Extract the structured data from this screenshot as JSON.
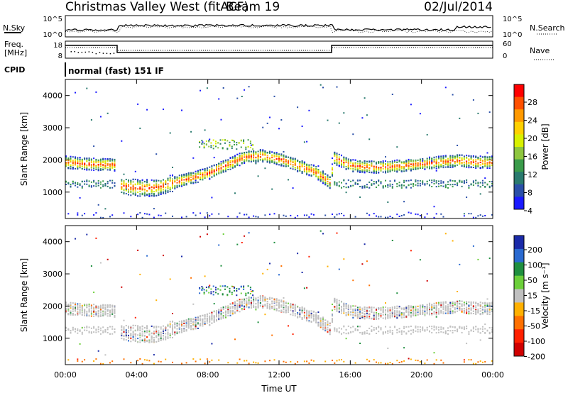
{
  "header": {
    "title": "Christmas Valley West (fitACF)",
    "beam": "Beam 19",
    "date": "02/Jul/2014"
  },
  "top_panel": {
    "left_label": "N.Sky",
    "right_label": "N.Search",
    "left_ticks": [
      "10^5",
      "10^0"
    ],
    "right_ticks": [
      "10^5",
      "10^0"
    ]
  },
  "freq_panel": {
    "left_label_line1": "Freq.",
    "left_label_line2": "[MHz]",
    "left_ticks": [
      "18",
      "8"
    ],
    "right_label": "Nave",
    "right_ticks": [
      "60",
      "0"
    ]
  },
  "cpid": {
    "label": "CPID",
    "value": "normal (fast) 151 IF"
  },
  "colorbar_power": {
    "label": "Power [dB]",
    "ticks": [
      "28",
      "24",
      "20",
      "16",
      "12",
      "8",
      "4"
    ],
    "colors": [
      "#ff0000",
      "#ff5000",
      "#ff9900",
      "#ffd000",
      "#d8f000",
      "#8ec63f",
      "#3a9b4a",
      "#2a7a6e",
      "#2a4fa8",
      "#1a1aff"
    ]
  },
  "colorbar_velocity": {
    "label": "Velocity [m s⁻¹]",
    "ticks": [
      "200",
      "100",
      "50",
      "15",
      "-15",
      "-50",
      "-100",
      "-200"
    ],
    "colors": [
      "#1a2aa8",
      "#2a6ad0",
      "#1f8f3f",
      "#6ccf3a",
      "#c0c0c0",
      "#ffb000",
      "#ff7000",
      "#ff2000",
      "#d00000"
    ]
  },
  "panels": {
    "slant_range_label": "Slant Range [km]",
    "range_ticks": [
      "4000",
      "3000",
      "2000",
      "1000"
    ],
    "time_ticks": [
      "00:00",
      "04:00",
      "08:00",
      "12:00",
      "16:00",
      "20:00",
      "00:00"
    ],
    "xlabel": "Time UT"
  },
  "chart_data": [
    {
      "type": "heatmap",
      "panel": "power",
      "x_range_hours": [
        0,
        24
      ],
      "y_range_km": [
        180,
        4500
      ],
      "gap_hours": [
        [
          2.8,
          3.0
        ]
      ],
      "main_band_km": [
        {
          "t": 0.0,
          "r": 1950
        },
        {
          "t": 1.0,
          "r": 1900
        },
        {
          "t": 2.0,
          "r": 1880
        },
        {
          "t": 2.8,
          "r": 1870
        },
        {
          "t": 3.0,
          "r": 1220
        },
        {
          "t": 4.0,
          "r": 1150
        },
        {
          "t": 5.0,
          "r": 1150
        },
        {
          "t": 6.0,
          "r": 1300
        },
        {
          "t": 7.0,
          "r": 1450
        },
        {
          "t": 8.0,
          "r": 1600
        },
        {
          "t": 9.0,
          "r": 1850
        },
        {
          "t": 10.0,
          "r": 2100
        },
        {
          "t": 11.0,
          "r": 2150
        },
        {
          "t": 12.0,
          "r": 2050
        },
        {
          "t": 13.0,
          "r": 1850
        },
        {
          "t": 14.0,
          "r": 1650
        },
        {
          "t": 14.9,
          "r": 1300
        },
        {
          "t": 15.0,
          "r": 2100
        },
        {
          "t": 16.0,
          "r": 1850
        },
        {
          "t": 17.0,
          "r": 1800
        },
        {
          "t": 18.0,
          "r": 1800
        },
        {
          "t": 19.0,
          "r": 1850
        },
        {
          "t": 20.0,
          "r": 1900
        },
        {
          "t": 21.0,
          "r": 1950
        },
        {
          "t": 22.0,
          "r": 2000
        },
        {
          "t": 23.0,
          "r": 1950
        },
        {
          "t": 24.0,
          "r": 1950
        }
      ]
    },
    {
      "type": "heatmap",
      "panel": "velocity",
      "x_range_hours": [
        0,
        24
      ],
      "y_range_km": [
        180,
        4500
      ],
      "note_ticks_ms": [
        200,
        100,
        50,
        15,
        -15,
        -50,
        -100,
        -200
      ]
    }
  ]
}
